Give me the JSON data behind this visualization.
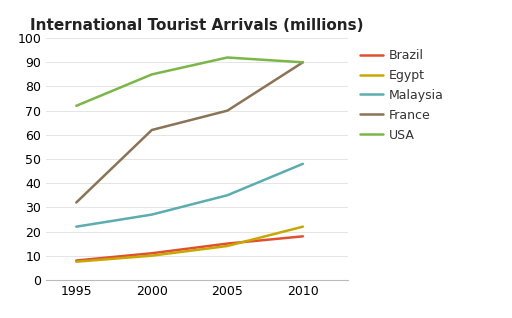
{
  "title": "International Tourist Arrivals (millions)",
  "years": [
    1995,
    2000,
    2005,
    2010
  ],
  "series": [
    {
      "label": "Brazil",
      "color": "#e05030",
      "values": [
        8,
        11,
        15,
        18
      ]
    },
    {
      "label": "Egypt",
      "color": "#c8a800",
      "values": [
        7.5,
        10,
        14,
        22
      ]
    },
    {
      "label": "Malaysia",
      "color": "#5badb0",
      "values": [
        22,
        27,
        35,
        48
      ]
    },
    {
      "label": "France",
      "color": "#8b7355",
      "values": [
        32,
        62,
        70,
        90
      ]
    },
    {
      "label": "USA",
      "color": "#7ab648",
      "values": [
        72,
        85,
        92,
        90
      ]
    }
  ],
  "xlim": [
    1993,
    2013
  ],
  "ylim": [
    0,
    100
  ],
  "yticks": [
    0,
    10,
    20,
    30,
    40,
    50,
    60,
    70,
    80,
    90,
    100
  ],
  "xticks": [
    1995,
    2000,
    2005,
    2010
  ],
  "background_color": "#ffffff",
  "title_fontsize": 11,
  "axis_fontsize": 9,
  "legend_fontsize": 9,
  "line_width": 1.8
}
